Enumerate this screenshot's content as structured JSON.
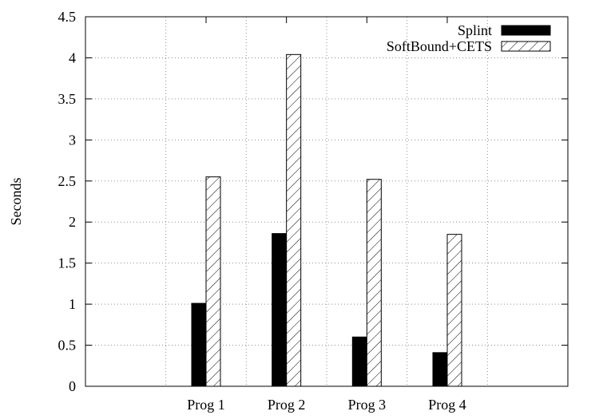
{
  "chart_data": {
    "type": "bar",
    "title": "",
    "xlabel": "",
    "ylabel": "Seconds",
    "ylim": [
      0,
      4.5
    ],
    "y_ticks": [
      0,
      0.5,
      1,
      1.5,
      2,
      2.5,
      3,
      3.5,
      4,
      4.5
    ],
    "y_tick_labels": [
      "0",
      "0.5",
      "1",
      "1.5",
      "2",
      "2.5",
      "3",
      "3.5",
      "4",
      "4.5"
    ],
    "categories": [
      "",
      "Prog 1",
      "Prog 2",
      "Prog 3",
      "Prog 4",
      ""
    ],
    "grid": true,
    "legend_position": "top-right",
    "series": [
      {
        "name": "Splint",
        "values": [
          null,
          1.01,
          1.86,
          0.6,
          0.41,
          null
        ],
        "fill": "solid",
        "color": "#000000"
      },
      {
        "name": "SoftBound+CETS",
        "values": [
          null,
          2.55,
          4.04,
          2.52,
          1.85,
          null
        ],
        "fill": "hatched",
        "color": "#000000"
      }
    ]
  }
}
